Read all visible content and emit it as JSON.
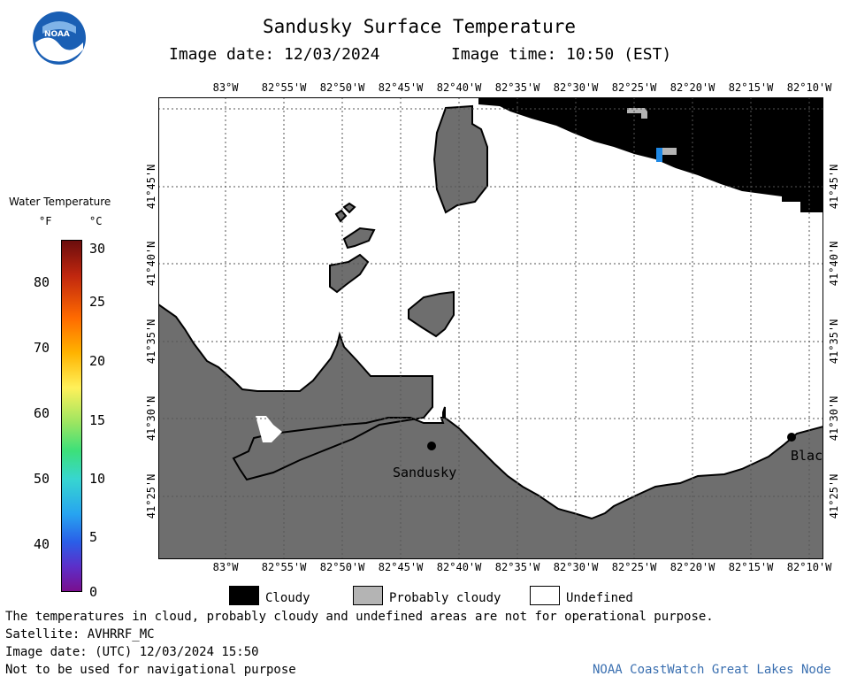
{
  "title": "Sandusky Surface Temperature",
  "image_date_label": "Image date: 12/03/2024",
  "image_time_label": "Image time: 10:50 (EST)",
  "logo_text": "NOAA",
  "colorbar": {
    "title": "Water Temperature",
    "unit_f": "°F",
    "unit_c": "°C",
    "f_ticks": [
      "80",
      "70",
      "60",
      "50",
      "40"
    ],
    "c_ticks": [
      "30",
      "25",
      "20",
      "15",
      "10",
      "5",
      "0"
    ]
  },
  "lon_ticks": [
    "83°W",
    "82°55'W",
    "82°50'W",
    "82°45'W",
    "82°40'W",
    "82°35'W",
    "82°30'W",
    "82°25'W",
    "82°20'W",
    "82°15'W",
    "82°10'W"
  ],
  "lat_ticks": [
    "41°45'N",
    "41°40'N",
    "41°35'N",
    "41°30'N",
    "41°25'N"
  ],
  "places": {
    "sandusky": "Sandusky",
    "blac": "Blac"
  },
  "legend": {
    "cloudy": "Cloudy",
    "probably_cloudy": "Probably cloudy",
    "undefined": "Undefined"
  },
  "colors": {
    "land": "#6e6e6e",
    "cloud": "#000000",
    "probably_cloudy": "#b4b4b4",
    "water_pixel": "#1e88e5"
  },
  "footer": {
    "disclaimer": "The temperatures in cloud, probably cloudy and undefined areas are not for operational purpose.",
    "satellite": "Satellite: AVHRRF_MC",
    "utc_date": "Image date: (UTC) 12/03/2024  15:50",
    "nav_warning": "Not to be used for navigational purpose",
    "credit": "NOAA CoastWatch Great Lakes Node"
  }
}
